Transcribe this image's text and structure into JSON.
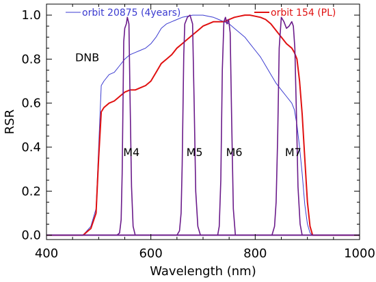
{
  "chart_data": {
    "type": "line",
    "xlabel": "Wavelength (nm)",
    "ylabel": "RSR",
    "xlim": [
      400,
      1000
    ],
    "ylim": [
      -0.02,
      1.05
    ],
    "xticks": [
      400,
      600,
      800,
      1000
    ],
    "yticks": [
      0.0,
      0.2,
      0.4,
      0.6,
      0.8,
      1.0
    ],
    "ytick_labels": [
      "0.0",
      "0.2",
      "0.4",
      "0.6",
      "0.8",
      "1.0"
    ],
    "grid": false,
    "legend": [
      {
        "name": "orbit 20875 (4years)",
        "color": "#3a3ad0",
        "placement": "top-left"
      },
      {
        "name": "orbit 154 (PL)",
        "color": "#e01010",
        "placement": "top-right"
      }
    ],
    "annotations": [
      {
        "text": "DNB",
        "x": 455,
        "y": 0.79
      },
      {
        "text": "M4",
        "x": 547,
        "y": 0.36
      },
      {
        "text": "M5",
        "x": 668,
        "y": 0.36
      },
      {
        "text": "M6",
        "x": 744,
        "y": 0.36
      },
      {
        "text": "M7",
        "x": 857,
        "y": 0.36
      }
    ],
    "series": [
      {
        "name": "orbit 20875 (4years)",
        "color": "#3a3ad0",
        "x": [
          400,
          470,
          485,
          495,
          500,
          505,
          510,
          520,
          530,
          540,
          550,
          560,
          570,
          580,
          590,
          600,
          610,
          620,
          630,
          640,
          650,
          660,
          670,
          680,
          690,
          700,
          710,
          720,
          730,
          740,
          750,
          760,
          770,
          780,
          790,
          800,
          810,
          820,
          830,
          840,
          850,
          860,
          870,
          875,
          880,
          885,
          890,
          895,
          900,
          905,
          910,
          920,
          1000
        ],
        "y": [
          0,
          0,
          0.04,
          0.12,
          0.4,
          0.68,
          0.7,
          0.73,
          0.74,
          0.77,
          0.8,
          0.82,
          0.83,
          0.84,
          0.85,
          0.87,
          0.9,
          0.94,
          0.96,
          0.97,
          0.98,
          0.99,
          0.995,
          1.0,
          1.0,
          1.0,
          0.995,
          0.99,
          0.98,
          0.97,
          0.96,
          0.94,
          0.92,
          0.9,
          0.87,
          0.84,
          0.81,
          0.77,
          0.73,
          0.69,
          0.66,
          0.63,
          0.6,
          0.57,
          0.5,
          0.4,
          0.28,
          0.14,
          0.05,
          0.01,
          0,
          0,
          0
        ]
      },
      {
        "name": "orbit 154 (PL)",
        "color": "#e01010",
        "x": [
          400,
          470,
          485,
          495,
          500,
          505,
          510,
          520,
          530,
          540,
          550,
          560,
          570,
          580,
          590,
          600,
          610,
          620,
          630,
          640,
          650,
          660,
          670,
          680,
          690,
          700,
          710,
          720,
          730,
          740,
          750,
          760,
          770,
          780,
          790,
          800,
          810,
          820,
          830,
          840,
          850,
          860,
          870,
          875,
          880,
          885,
          890,
          895,
          900,
          905,
          910,
          920,
          1000
        ],
        "y": [
          0,
          0,
          0.03,
          0.1,
          0.35,
          0.56,
          0.58,
          0.6,
          0.61,
          0.63,
          0.65,
          0.66,
          0.66,
          0.67,
          0.68,
          0.7,
          0.74,
          0.78,
          0.8,
          0.82,
          0.85,
          0.87,
          0.89,
          0.91,
          0.93,
          0.95,
          0.96,
          0.97,
          0.97,
          0.97,
          0.98,
          0.99,
          0.995,
          1.0,
          1.0,
          0.995,
          0.99,
          0.98,
          0.96,
          0.93,
          0.9,
          0.87,
          0.85,
          0.83,
          0.8,
          0.7,
          0.55,
          0.35,
          0.15,
          0.04,
          0,
          0,
          0
        ]
      },
      {
        "name": "M4",
        "color": "#6a1a8a",
        "x": [
          400,
          535,
          540,
          543,
          545,
          548,
          550,
          553,
          555,
          558,
          560,
          563,
          566,
          570,
          1000
        ],
        "y": [
          0,
          0,
          0.01,
          0.07,
          0.28,
          0.88,
          0.94,
          0.96,
          0.99,
          0.96,
          0.65,
          0.22,
          0.04,
          0,
          0
        ]
      },
      {
        "name": "M5",
        "color": "#6a1a8a",
        "x": [
          400,
          650,
          655,
          658,
          660,
          663,
          665,
          670,
          675,
          680,
          683,
          686,
          690,
          695,
          1000
        ],
        "y": [
          0,
          0,
          0.02,
          0.1,
          0.32,
          0.82,
          0.96,
          0.99,
          1.0,
          0.96,
          0.6,
          0.2,
          0.04,
          0,
          0
        ]
      },
      {
        "name": "M6",
        "color": "#6a1a8a",
        "x": [
          400,
          728,
          731,
          734,
          737,
          740,
          743,
          746,
          749,
          752,
          755,
          758,
          762,
          1000
        ],
        "y": [
          0,
          0,
          0.04,
          0.25,
          0.75,
          0.97,
          0.99,
          0.96,
          0.98,
          0.92,
          0.5,
          0.12,
          0,
          0
        ]
      },
      {
        "name": "M7",
        "color": "#6a1a8a",
        "x": [
          400,
          832,
          837,
          840,
          843,
          846,
          850,
          855,
          860,
          865,
          870,
          873,
          876,
          879,
          882,
          886,
          890,
          1000
        ],
        "y": [
          0,
          0,
          0.04,
          0.15,
          0.45,
          0.85,
          0.99,
          0.97,
          0.94,
          0.95,
          0.97,
          0.95,
          0.85,
          0.55,
          0.22,
          0.05,
          0,
          0
        ]
      }
    ]
  }
}
